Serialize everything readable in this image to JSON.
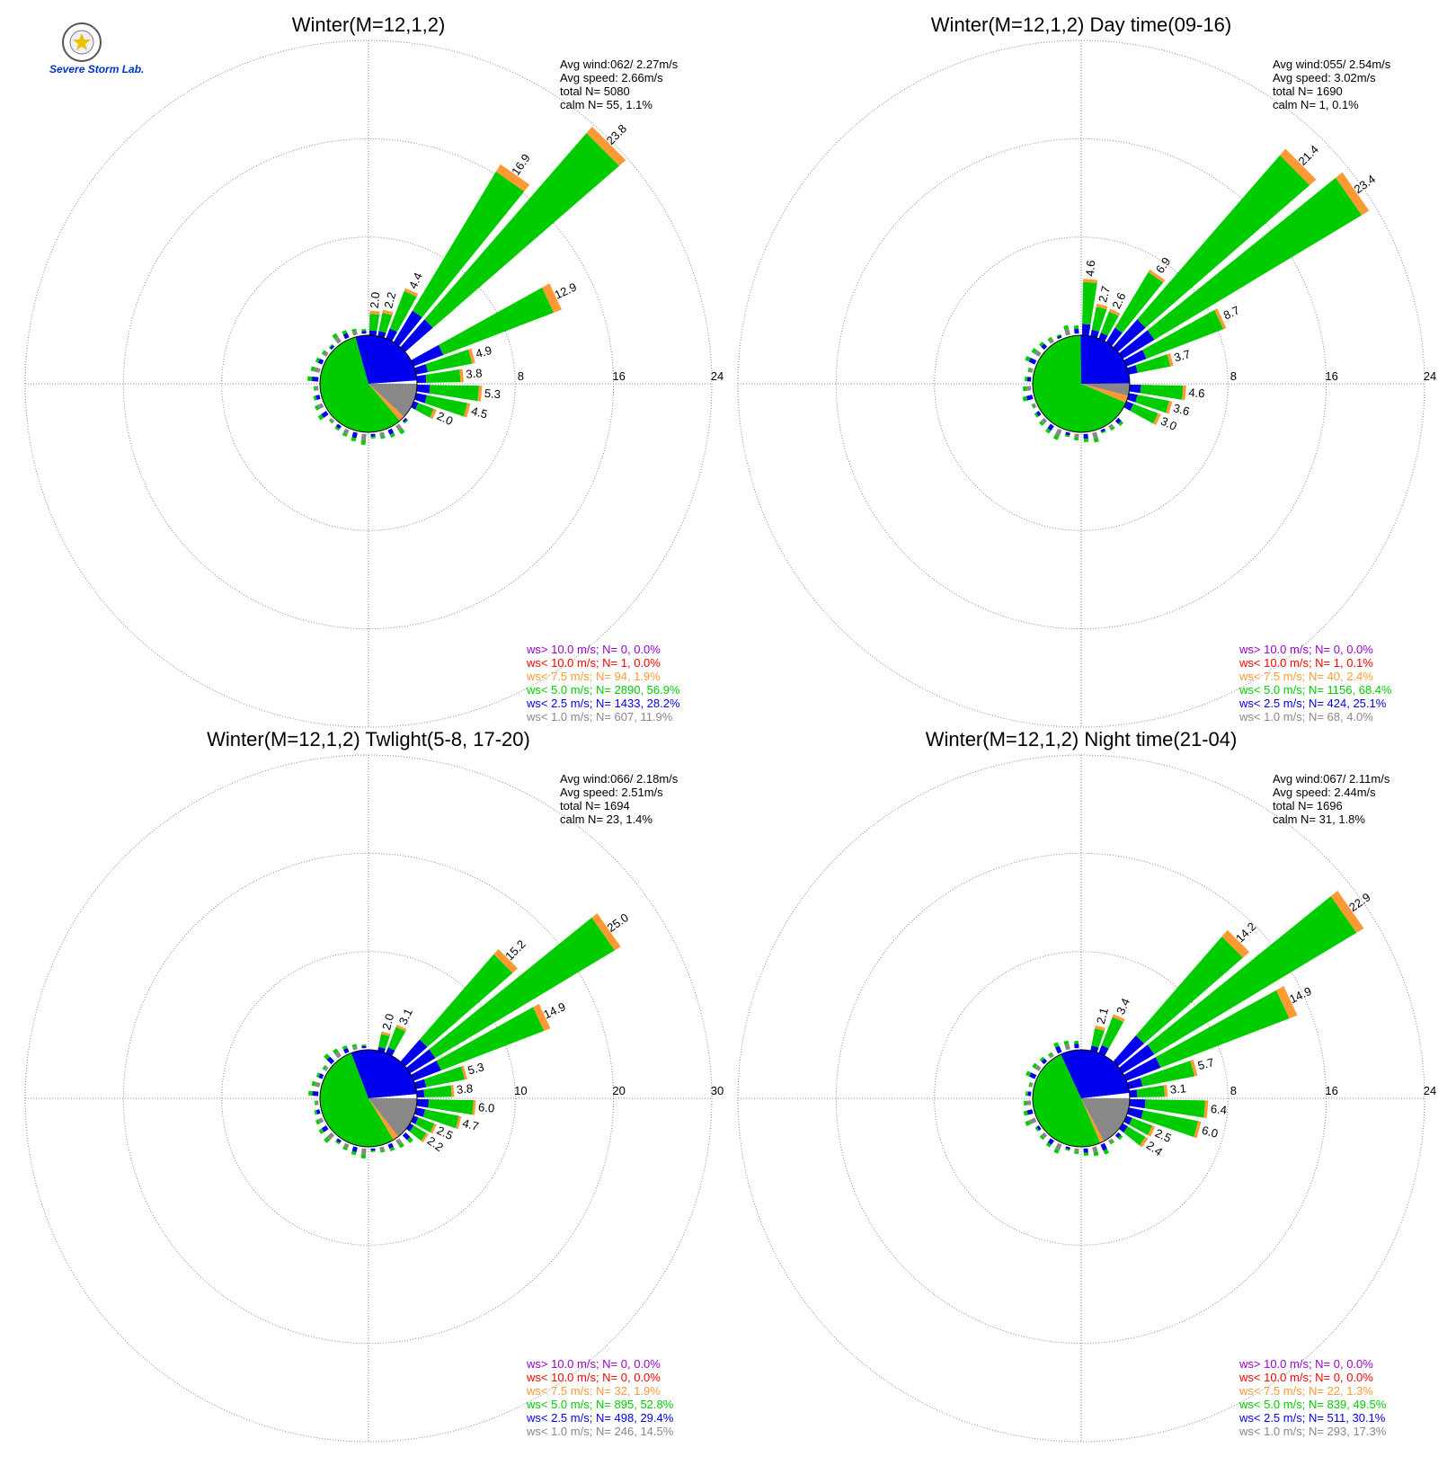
{
  "logo": {
    "text": "Severe Storm Lab."
  },
  "colors": {
    "gt10": "#9900cc",
    "lt10": "#ff0000",
    "lt7_5": "#ff9933",
    "lt5": "#00cc00",
    "lt2_5": "#0000ee",
    "lt1": "#888888",
    "grid": "#888888"
  },
  "chart_data": [
    {
      "type": "windrose",
      "title": "Winter(M=12,1,2)",
      "stats": [
        "Avg wind:062/ 2.27m/s",
        "Avg speed: 2.66m/s",
        "total N=       5080",
        "calm N=     55,   1.1%"
      ],
      "rings": [
        8,
        16,
        24
      ],
      "ring_labels": [
        "8",
        "16",
        "24"
      ],
      "legend": [
        {
          "text": "ws> 10.0 m/s; N=      0,  0.0%",
          "color": "gt10"
        },
        {
          "text": "ws< 10.0 m/s; N=      1,  0.0%",
          "color": "lt10"
        },
        {
          "text": "ws<  7.5 m/s; N=     94,  1.9%",
          "color": "lt7_5"
        },
        {
          "text": "ws<  5.0 m/s; N=   2890, 56.9%",
          "color": "lt5"
        },
        {
          "text": "ws<  2.5 m/s; N=   1433, 28.2%",
          "color": "lt2_5"
        },
        {
          "text": "ws<  1.0 m/s; N=    607, 11.9%",
          "color": "lt1"
        }
      ],
      "sectors": [
        {
          "dir": 5,
          "total": 2.0,
          "label": "2.0"
        },
        {
          "dir": 15,
          "total": 2.2,
          "label": "2.2"
        },
        {
          "dir": 25,
          "total": 4.4,
          "label": "4.4"
        },
        {
          "dir": 35,
          "total": 16.9,
          "label": "16.9"
        },
        {
          "dir": 45,
          "total": 23.8,
          "label": "23.8"
        },
        {
          "dir": 65,
          "total": 12.9,
          "label": "12.9"
        },
        {
          "dir": 75,
          "total": 4.9,
          "label": "4.9"
        },
        {
          "dir": 85,
          "total": 3.8,
          "label": "3.8"
        },
        {
          "dir": 95,
          "total": 5.3,
          "label": "5.3"
        },
        {
          "dir": 105,
          "total": 4.5,
          "label": "4.5"
        },
        {
          "dir": 115,
          "total": 2.0,
          "label": "2.0"
        }
      ],
      "pie": [
        {
          "bin": "lt1",
          "pct": 11.9
        },
        {
          "bin": "lt7_5",
          "pct": 1.9
        },
        {
          "bin": "lt5",
          "pct": 56.9
        },
        {
          "bin": "lt2_5",
          "pct": 28.2
        }
      ]
    },
    {
      "type": "windrose",
      "title": "Winter(M=12,1,2) Day time(09-16)",
      "stats": [
        "Avg wind:055/ 2.54m/s",
        "Avg speed: 3.02m/s",
        "total N=       1690",
        "calm N=       1,   0.1%"
      ],
      "rings": [
        8,
        16,
        24
      ],
      "ring_labels": [
        "8",
        "16",
        "24"
      ],
      "legend": [
        {
          "text": "ws> 10.0 m/s; N=      0,  0.0%",
          "color": "gt10"
        },
        {
          "text": "ws< 10.0 m/s; N=      1,  0.1%",
          "color": "lt10"
        },
        {
          "text": "ws<  7.5 m/s; N=     40,  2.4%",
          "color": "lt7_5"
        },
        {
          "text": "ws<  5.0 m/s; N=   1156, 68.4%",
          "color": "lt5"
        },
        {
          "text": "ws<  2.5 m/s; N=    424, 25.1%",
          "color": "lt2_5"
        },
        {
          "text": "ws<  1.0 m/s; N=     68,  4.0%",
          "color": "lt1"
        }
      ],
      "sectors": [
        {
          "dir": 5,
          "total": 4.6,
          "label": "4.6"
        },
        {
          "dir": 15,
          "total": 2.7,
          "label": "2.7"
        },
        {
          "dir": 25,
          "total": 2.6,
          "label": "2.6"
        },
        {
          "dir": 35,
          "total": 6.9,
          "label": "6.9"
        },
        {
          "dir": 45,
          "total": 21.4,
          "label": "21.4"
        },
        {
          "dir": 55,
          "total": 23.4,
          "label": "23.4"
        },
        {
          "dir": 65,
          "total": 8.7,
          "label": "8.7"
        },
        {
          "dir": 75,
          "total": 3.7,
          "label": "3.7"
        },
        {
          "dir": 95,
          "total": 4.6,
          "label": "4.6"
        },
        {
          "dir": 105,
          "total": 3.6,
          "label": "3.6"
        },
        {
          "dir": 115,
          "total": 3.0,
          "label": "3.0"
        }
      ],
      "pie": [
        {
          "bin": "lt1",
          "pct": 4.0
        },
        {
          "bin": "lt7_5",
          "pct": 2.4
        },
        {
          "bin": "lt5",
          "pct": 68.4
        },
        {
          "bin": "lt2_5",
          "pct": 25.1
        }
      ]
    },
    {
      "type": "windrose",
      "title": "Winter(M=12,1,2) Twlight(5-8, 17-20)",
      "stats": [
        "Avg wind:066/ 2.18m/s",
        "Avg speed: 2.51m/s",
        "total N=       1694",
        "calm N=     23,   1.4%"
      ],
      "rings": [
        10,
        20,
        30
      ],
      "ring_labels": [
        "10",
        "20",
        "30"
      ],
      "legend": [
        {
          "text": "ws> 10.0 m/s; N=      0,  0.0%",
          "color": "gt10"
        },
        {
          "text": "ws< 10.0 m/s; N=      0,  0.0%",
          "color": "lt10"
        },
        {
          "text": "ws<  7.5 m/s; N=     32,  1.9%",
          "color": "lt7_5"
        },
        {
          "text": "ws<  5.0 m/s; N=    895, 52.8%",
          "color": "lt5"
        },
        {
          "text": "ws<  2.5 m/s; N=    498, 29.4%",
          "color": "lt2_5"
        },
        {
          "text": "ws<  1.0 m/s; N=    246, 14.5%",
          "color": "lt1"
        }
      ],
      "sectors": [
        {
          "dir": 15,
          "total": 2.0,
          "label": "2.0"
        },
        {
          "dir": 25,
          "total": 3.1,
          "label": "3.1"
        },
        {
          "dir": 45,
          "total": 15.2,
          "label": "15.2"
        },
        {
          "dir": 55,
          "total": 25.0,
          "label": "25.0"
        },
        {
          "dir": 65,
          "total": 14.9,
          "label": "14.9"
        },
        {
          "dir": 75,
          "total": 5.3,
          "label": "5.3"
        },
        {
          "dir": 85,
          "total": 3.8,
          "label": "3.8"
        },
        {
          "dir": 95,
          "total": 6.0,
          "label": "6.0"
        },
        {
          "dir": 105,
          "total": 4.7,
          "label": "4.7"
        },
        {
          "dir": 115,
          "total": 2.5,
          "label": "2.5"
        },
        {
          "dir": 125,
          "total": 2.2,
          "label": "2.2"
        }
      ],
      "pie": [
        {
          "bin": "lt1",
          "pct": 14.5
        },
        {
          "bin": "lt7_5",
          "pct": 1.9
        },
        {
          "bin": "lt5",
          "pct": 52.8
        },
        {
          "bin": "lt2_5",
          "pct": 29.4
        }
      ]
    },
    {
      "type": "windrose",
      "title": "Winter(M=12,1,2) Night time(21-04)",
      "stats": [
        "Avg wind:067/ 2.11m/s",
        "Avg speed: 2.44m/s",
        "total N=       1696",
        "calm N=     31,   1.8%"
      ],
      "rings": [
        8,
        16,
        24
      ],
      "ring_labels": [
        "8",
        "16",
        "24"
      ],
      "legend": [
        {
          "text": "ws> 10.0 m/s; N=      0,  0.0%",
          "color": "gt10"
        },
        {
          "text": "ws< 10.0 m/s; N=      0,  0.0%",
          "color": "lt10"
        },
        {
          "text": "ws<  7.5 m/s; N=     22,  1.3%",
          "color": "lt7_5"
        },
        {
          "text": "ws<  5.0 m/s; N=    839, 49.5%",
          "color": "lt5"
        },
        {
          "text": "ws<  2.5 m/s; N=    511, 30.1%",
          "color": "lt2_5"
        },
        {
          "text": "ws<  1.0 m/s; N=    293, 17.3%",
          "color": "lt1"
        }
      ],
      "sectors": [
        {
          "dir": 15,
          "total": 2.1,
          "label": "2.1"
        },
        {
          "dir": 25,
          "total": 3.4,
          "label": "3.4"
        },
        {
          "dir": 45,
          "total": 14.2,
          "label": "14.2"
        },
        {
          "dir": 55,
          "total": 22.9,
          "label": "22.9"
        },
        {
          "dir": 65,
          "total": 14.9,
          "label": "14.9"
        },
        {
          "dir": 75,
          "total": 5.7,
          "label": "5.7"
        },
        {
          "dir": 85,
          "total": 3.1,
          "label": "3.1"
        },
        {
          "dir": 95,
          "total": 6.4,
          "label": "6.4"
        },
        {
          "dir": 105,
          "total": 6.0,
          "label": "6.0"
        },
        {
          "dir": 115,
          "total": 2.5,
          "label": "2.5"
        },
        {
          "dir": 125,
          "total": 2.4,
          "label": "2.4"
        }
      ],
      "pie": [
        {
          "bin": "lt1",
          "pct": 17.3
        },
        {
          "bin": "lt7_5",
          "pct": 1.3
        },
        {
          "bin": "lt5",
          "pct": 49.5
        },
        {
          "bin": "lt2_5",
          "pct": 30.1
        }
      ]
    }
  ]
}
